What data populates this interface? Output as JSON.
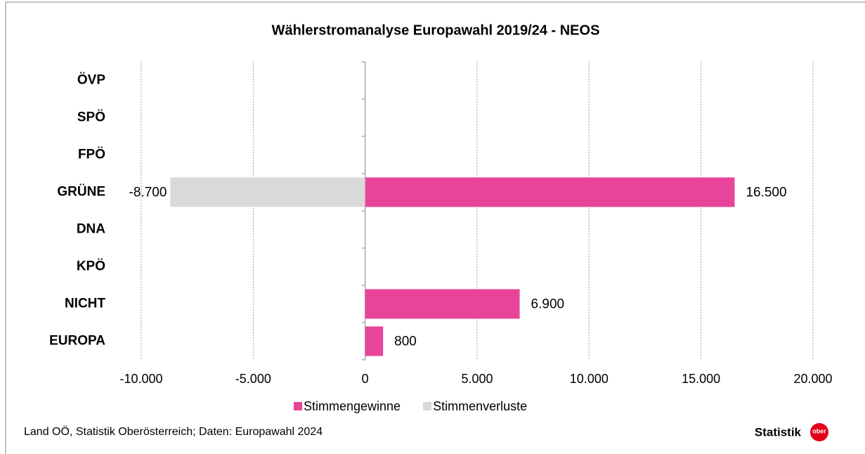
{
  "chart_data": {
    "type": "bar",
    "orientation": "horizontal",
    "title": "Wählerstromanalyse Europawahl 2019/24 - NEOS",
    "categories": [
      "ÖVP",
      "SPÖ",
      "FPÖ",
      "GRÜNE",
      "DNA",
      "KPÖ",
      "NICHT",
      "EUROPA"
    ],
    "series": [
      {
        "name": "Stimmengewinne",
        "color": "#e8449a",
        "values": [
          null,
          null,
          null,
          16500,
          null,
          null,
          6900,
          800
        ],
        "value_labels": [
          null,
          null,
          null,
          "16.500",
          null,
          null,
          "6.900",
          "800"
        ]
      },
      {
        "name": "Stimmenverluste",
        "color": "#d9d9d9",
        "values": [
          null,
          null,
          null,
          -8700,
          null,
          null,
          null,
          null
        ],
        "value_labels": [
          null,
          null,
          null,
          "-8.700",
          null,
          null,
          null,
          null
        ]
      }
    ],
    "xlim": [
      -10000,
      20000
    ],
    "xticks": [
      {
        "value": -10000,
        "label": "-10.000"
      },
      {
        "value": -5000,
        "label": "-5.000"
      },
      0,
      {
        "value": 5000,
        "label": "5.000"
      },
      {
        "value": 10000,
        "label": "10.000"
      },
      {
        "value": 15000,
        "label": "15.000"
      },
      {
        "value": 20000,
        "label": "20.000"
      }
    ],
    "grid": true,
    "legend": "bottom",
    "source": "Land OÖ, Statistik Oberösterreich; Daten: Europawahl 2024",
    "logo": "Statistik",
    "logo_badge": "ober"
  }
}
